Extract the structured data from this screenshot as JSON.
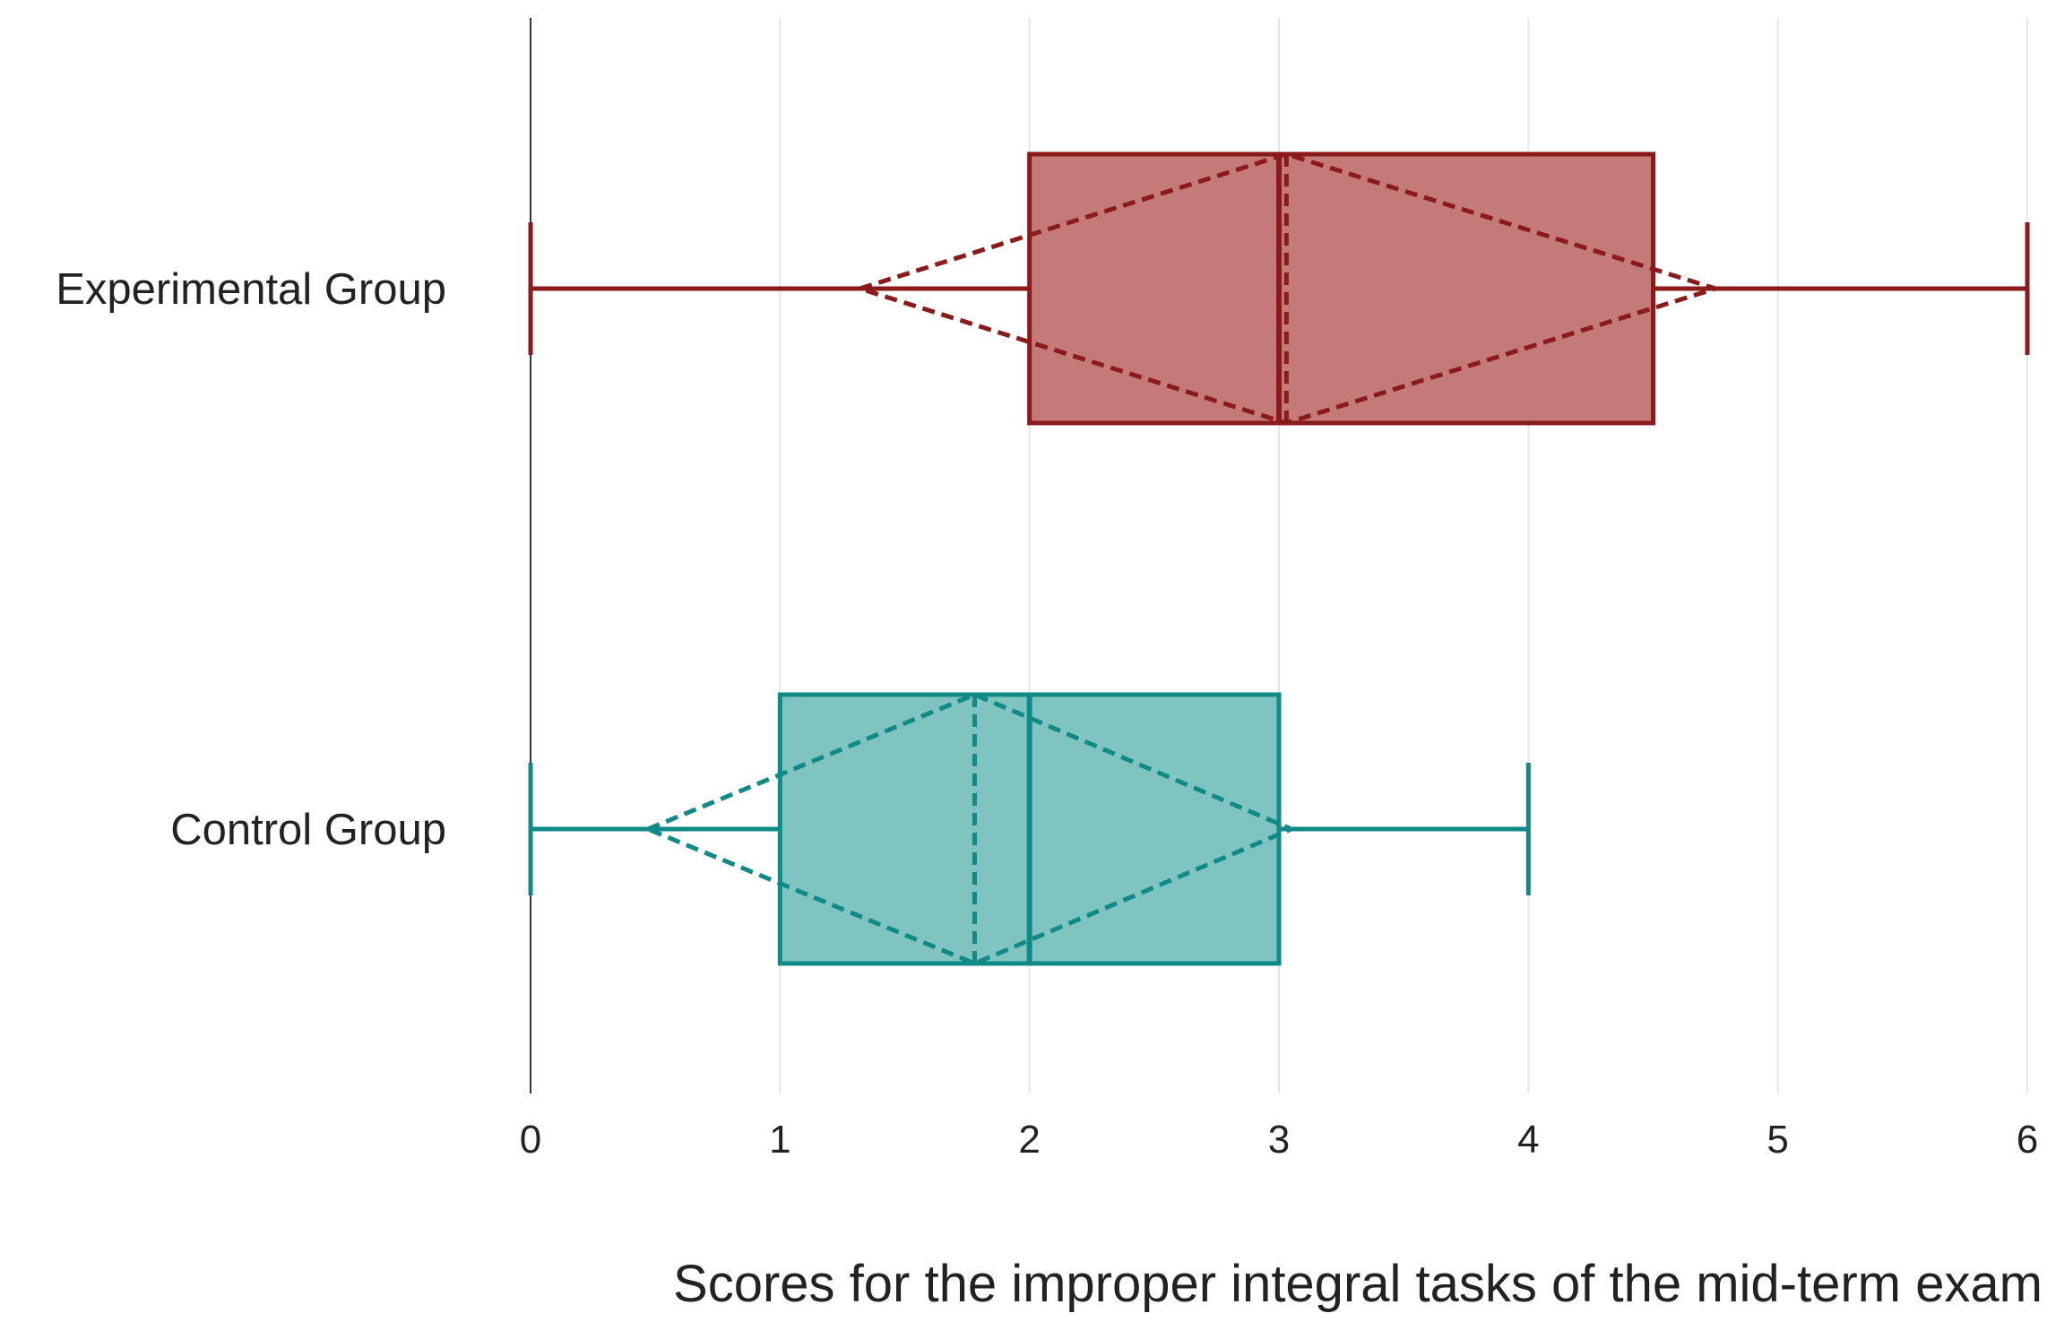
{
  "chart_data": {
    "type": "boxplot",
    "orientation": "horizontal",
    "title": "",
    "xlabel": "Scores for the improper integral tasks of the mid-term exam",
    "ylabel": "",
    "xlim": [
      0,
      6
    ],
    "xticks": [
      0,
      1,
      2,
      3,
      4,
      5,
      6
    ],
    "xtick_labels": [
      "0",
      "1",
      "2",
      "3",
      "4",
      "5",
      "6"
    ],
    "grid": "vertical",
    "legend": "none",
    "groups": [
      {
        "name": "Experimental Group",
        "color": "#8b1a1a",
        "fill": "#c47a78",
        "whisker_low": 0,
        "q1": 2,
        "median": 3,
        "q3": 4.5,
        "whisker_high": 6,
        "mean": 3.03,
        "mean_ci_low": 1.32,
        "mean_ci_high": 4.75
      },
      {
        "name": "Control Group",
        "color": "#0f8a86",
        "fill": "#80c4c1",
        "whisker_low": 0,
        "q1": 1,
        "median": 2,
        "q3": 3,
        "whisker_high": 4,
        "mean": 1.78,
        "mean_ci_low": 0.47,
        "mean_ci_high": 3.05
      }
    ]
  }
}
